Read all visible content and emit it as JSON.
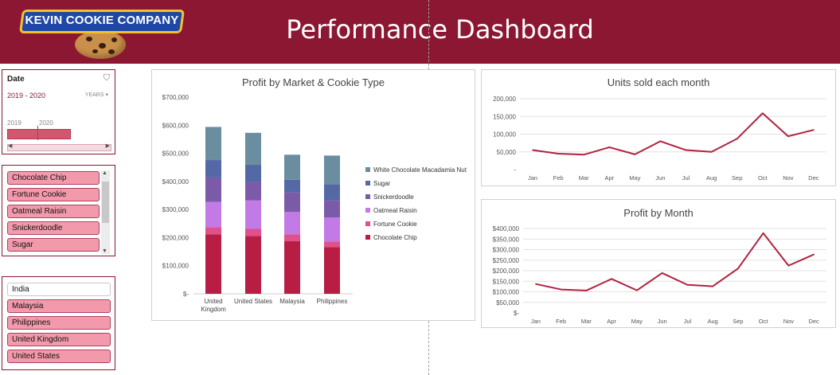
{
  "header": {
    "title": "Performance Dashboard",
    "logo_text": "KEVIN COOKIE COMPANY",
    "bg": "#8b1732"
  },
  "timeline": {
    "label": "Date",
    "range": "2019 - 2020",
    "unit": "YEARS",
    "years": [
      "2019",
      "2020"
    ]
  },
  "cookie_slicer": {
    "items": [
      "Chocolate Chip",
      "Fortune Cookie",
      "Oatmeal Raisin",
      "Snickerdoodle",
      "Sugar"
    ]
  },
  "market_slicer": {
    "items": [
      {
        "label": "India",
        "selected": false
      },
      {
        "label": "Malaysia",
        "selected": true
      },
      {
        "label": "Philippines",
        "selected": true
      },
      {
        "label": "United Kingdom",
        "selected": true
      },
      {
        "label": "United States",
        "selected": true
      }
    ]
  },
  "chart_data": [
    {
      "type": "bar",
      "stacked": true,
      "title": "Profit by Market & Cookie Type",
      "categories": [
        "United Kingdom",
        "United States",
        "Malaysia",
        "Philippines"
      ],
      "ylim": [
        0,
        700000
      ],
      "yticks": [
        0,
        100000,
        200000,
        300000,
        400000,
        500000,
        600000,
        700000
      ],
      "ytick_labels": [
        "$-",
        "$100,000",
        "$200,000",
        "$300,000",
        "$400,000",
        "$500,000",
        "$600,000",
        "$700,000"
      ],
      "legend_position": "right",
      "series": [
        {
          "name": "Chocolate Chip",
          "color": "#b81e43",
          "values": [
            212000,
            206000,
            187000,
            166000
          ]
        },
        {
          "name": "Fortune Cookie",
          "color": "#e0508a",
          "values": [
            25000,
            25000,
            25000,
            20000
          ]
        },
        {
          "name": "Oatmeal Raisin",
          "color": "#c27ae6",
          "values": [
            90000,
            102000,
            79000,
            86000
          ]
        },
        {
          "name": "Snickerdoodle",
          "color": "#7b5ba8",
          "values": [
            87000,
            64000,
            70000,
            60000
          ]
        },
        {
          "name": "Sugar",
          "color": "#5468a6",
          "values": [
            62000,
            62000,
            45000,
            58000
          ]
        },
        {
          "name": "White Chocolate Macadamia Nut",
          "color": "#6a8da0",
          "values": [
            118000,
            114000,
            89000,
            102000
          ]
        }
      ]
    },
    {
      "type": "line",
      "title": "Units sold each month",
      "x": [
        "Jan",
        "Feb",
        "Mar",
        "Apr",
        "May",
        "Jun",
        "Jul",
        "Aug",
        "Sep",
        "Oct",
        "Nov",
        "Dec"
      ],
      "ylim": [
        0,
        200000
      ],
      "yticks": [
        0,
        50000,
        100000,
        150000,
        200000
      ],
      "ytick_labels": [
        "-",
        "50,000",
        "100,000",
        "150,000",
        "200,000"
      ],
      "color": "#b0223f",
      "series": [
        {
          "values": [
            55000,
            45000,
            42000,
            63000,
            43000,
            80000,
            55000,
            50000,
            87000,
            159000,
            94000,
            112000
          ]
        }
      ]
    },
    {
      "type": "line",
      "title": "Profit by Month",
      "x": [
        "Jan",
        "Feb",
        "Mar",
        "Apr",
        "May",
        "Jun",
        "Jul",
        "Aug",
        "Sep",
        "Oct",
        "Nov",
        "Dec"
      ],
      "ylim": [
        0,
        400000
      ],
      "yticks": [
        0,
        50000,
        100000,
        150000,
        200000,
        250000,
        300000,
        350000,
        400000
      ],
      "ytick_labels": [
        "$-",
        "$50,000",
        "$100,000",
        "$150,000",
        "$200,000",
        "$250,000",
        "$300,000",
        "$350,000",
        "$400,000"
      ],
      "color": "#b0223f",
      "series": [
        {
          "values": [
            137000,
            111000,
            106000,
            161000,
            107000,
            189000,
            133000,
            126000,
            210000,
            378000,
            224000,
            277000
          ]
        }
      ]
    }
  ]
}
